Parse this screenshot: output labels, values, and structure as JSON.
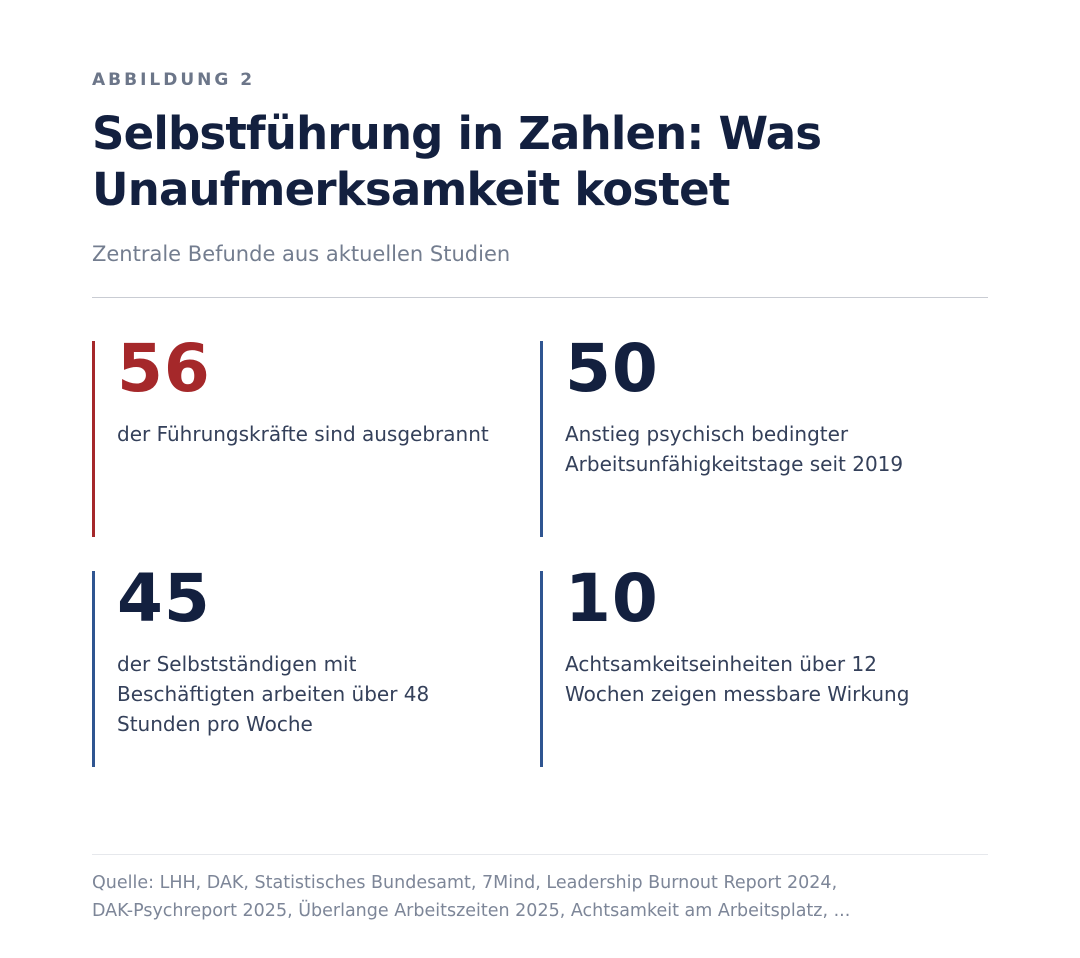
{
  "figure": {
    "eyebrow": "ABBILDUNG 2",
    "title": "Selbstführung in Zahlen: Was Unaufmerksamkeit kostet",
    "subtitle": "Zentrale Befunde aus aktuellen Studien",
    "stats": [
      {
        "value": "56",
        "label": "der Führungskräfte sind ausgebrannt",
        "bar_color": "#a5282a"
      },
      {
        "value": "50",
        "label": "Anstieg psychisch bedingter Arbeitsunfähigkeitstage seit 2019",
        "bar_color": "#2f5591"
      },
      {
        "value": "45",
        "label": "der Selbstständigen mit Beschäftigten arbeiten über 48 Stunden pro Woche",
        "bar_color": "#2f5591"
      },
      {
        "value": "10",
        "label": "Achtsamkeitseinheiten über 12 Wochen zeigen messbare Wirkung",
        "bar_color": "#2f5591"
      }
    ],
    "source_lines": [
      "Quelle: LHH, DAK, Statistisches Bundesamt, 7Mind, Leadership Burnout Report 2024,",
      "DAK-Psychreport 2025, Überlange Arbeitszeiten 2025, Achtsamkeit am Arbeitsplatz, ..."
    ]
  },
  "colors": {
    "accent_red": "#a5282a",
    "accent_blue": "#2f5591",
    "title": "#13203f",
    "muted_text": "#737d8f"
  }
}
